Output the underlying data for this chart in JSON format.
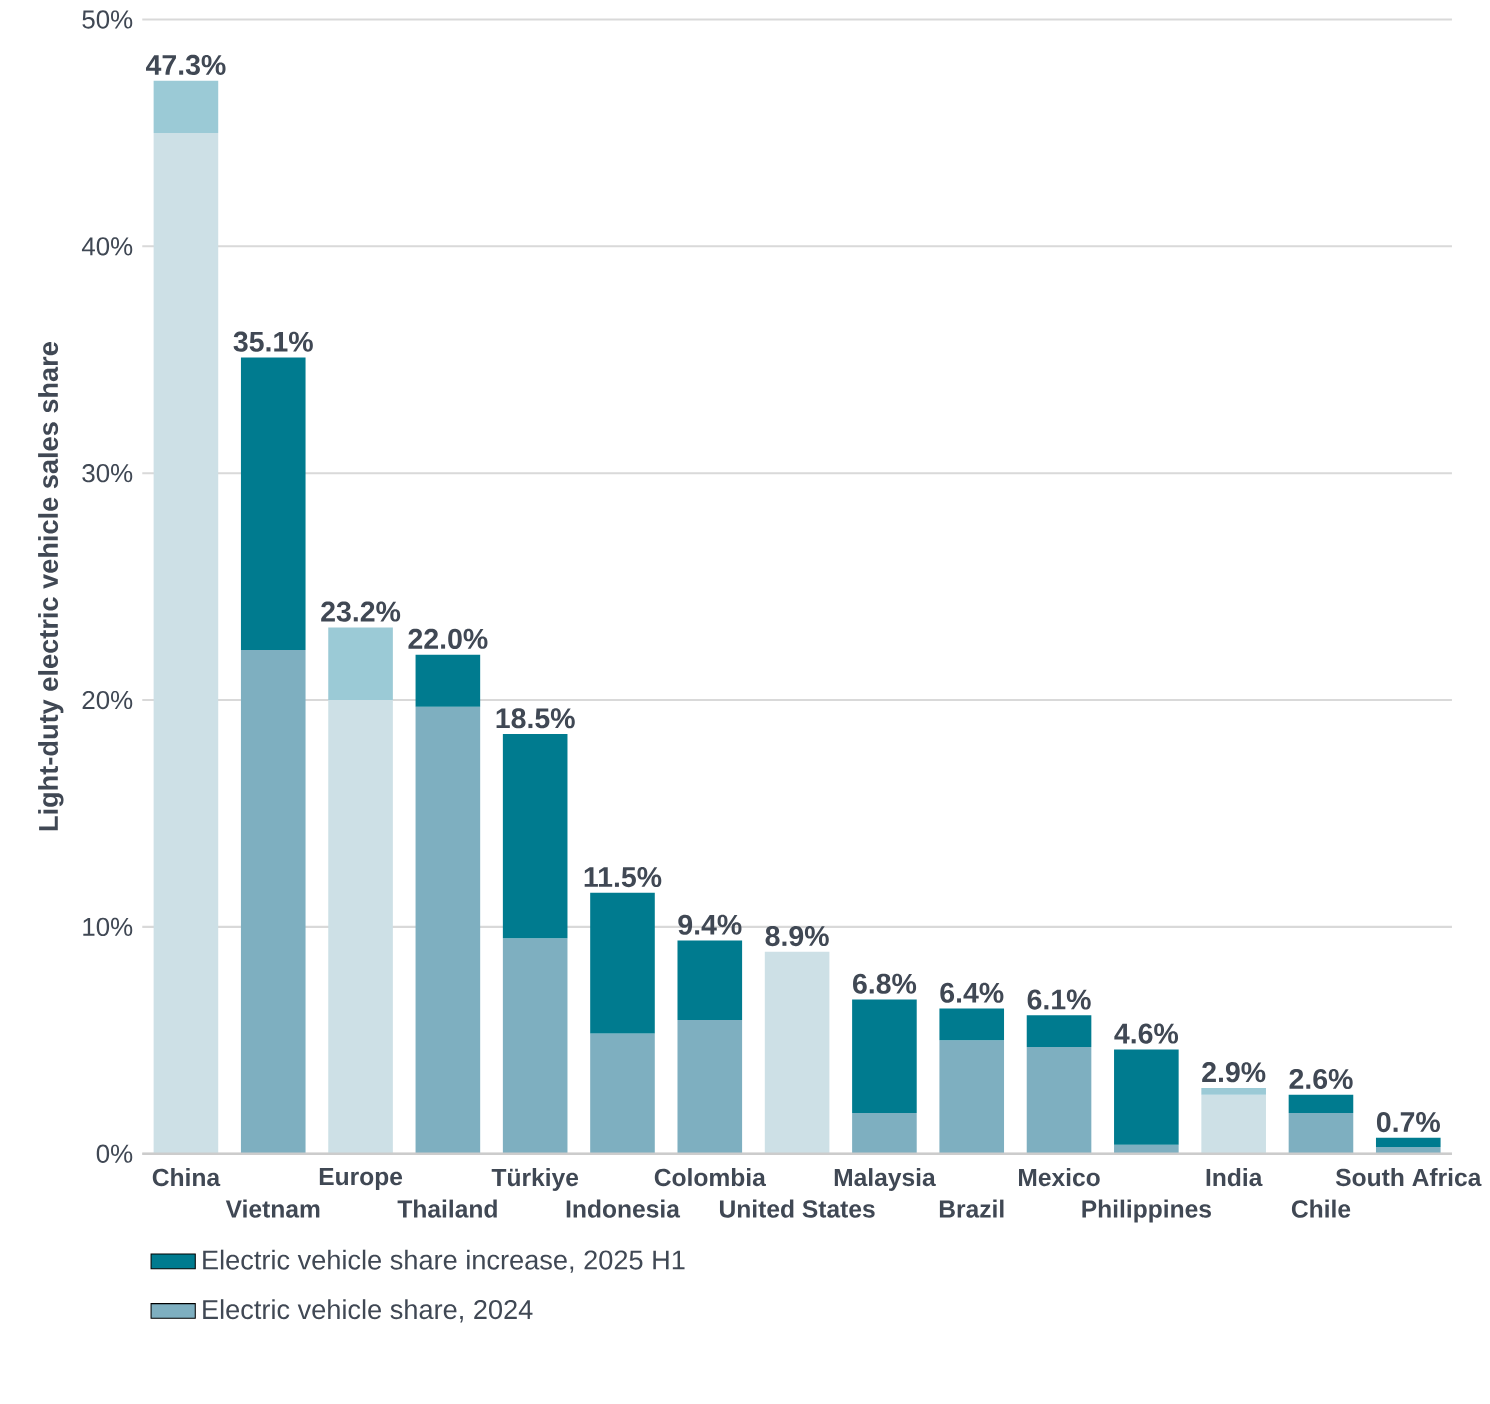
{
  "chart_data": {
    "type": "bar",
    "stacked": true,
    "ylabel": "Light-duty electric vehicle sales share",
    "categories": [
      "China",
      "Vietnam",
      "Europe",
      "Thailand",
      "Türkiye",
      "Indonesia",
      "Colombia",
      "United States",
      "Malaysia",
      "Brazil",
      "Mexico",
      "Philippines",
      "India",
      "Chile",
      "South Africa"
    ],
    "series": [
      {
        "name": "Electric vehicle share, 2024",
        "color": "#7eafc0",
        "colors": [
          "#cde0e6",
          "#7eafc0",
          "#cde0e6",
          "#7eafc0",
          "#7eafc0",
          "#7eafc0",
          "#7eafc0",
          "#cde0e6",
          "#7eafc0",
          "#7eafc0",
          "#7eafc0",
          "#7eafc0",
          "#cde0e6",
          "#7eafc0",
          "#7eafc0"
        ],
        "values": [
          45.0,
          22.2,
          20.0,
          19.7,
          9.5,
          5.3,
          5.9,
          8.9,
          1.8,
          5.0,
          4.7,
          0.4,
          2.6,
          1.8,
          0.3
        ]
      },
      {
        "name": "Electric vehicle share increase, 2025 H1",
        "color": "#007b8f",
        "colors": [
          "#9bcad6",
          "#007b8f",
          "#9bcad6",
          "#007b8f",
          "#007b8f",
          "#007b8f",
          "#007b8f",
          "#9bcad6",
          "#007b8f",
          "#007b8f",
          "#007b8f",
          "#007b8f",
          "#9bcad6",
          "#007b8f",
          "#007b8f"
        ],
        "values": [
          2.3,
          12.9,
          3.2,
          2.3,
          9.0,
          6.2,
          3.5,
          null,
          5.0,
          1.4,
          1.4,
          4.2,
          0.3,
          0.8,
          0.4
        ]
      }
    ],
    "totals": [
      "47.3%",
      "35.1%",
      "23.2%",
      "22.0%",
      "18.5%",
      "11.5%",
      "9.4%",
      "8.9%",
      "6.8%",
      "6.4%",
      "6.1%",
      "4.6%",
      "2.9%",
      "2.6%",
      "0.7%"
    ],
    "ylim": [
      0,
      50
    ],
    "yticks": [
      {
        "value": 0,
        "label": "0%"
      },
      {
        "value": 10,
        "label": "10%"
      },
      {
        "value": 20,
        "label": "20%"
      },
      {
        "value": 30,
        "label": "30%"
      },
      {
        "value": 40,
        "label": "40%"
      },
      {
        "value": 50,
        "label": "50%"
      }
    ],
    "grid": "y",
    "legend": "bottom"
  }
}
